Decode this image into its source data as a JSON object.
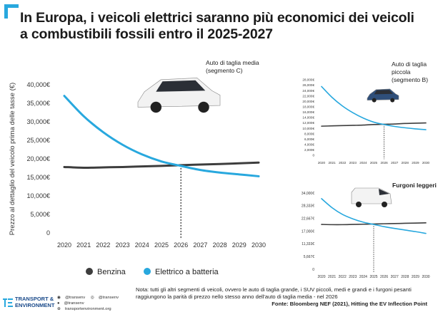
{
  "title_line1": "In Europa, i veicoli elettrici saranno più economici dei veicoli",
  "title_line2": "a combustibili fossili entro il 2025-2027",
  "colors": {
    "ice": "#3d3d3d",
    "ev": "#28a8de",
    "accent": "#28a8de",
    "brand": "#1a4a8a"
  },
  "chart_data": [
    {
      "type": "line",
      "title": "Auto di taglia media",
      "subtitle": "(segmento C)",
      "ylabel": "Prezzo al dettaglio del veicolo prima delle tasse (€)",
      "x": [
        2020,
        2021,
        2022,
        2023,
        2024,
        2025,
        2026,
        2027,
        2028,
        2029,
        2030
      ],
      "xlim": [
        2020,
        2030
      ],
      "ylim": [
        0,
        40000
      ],
      "yticks": [
        0,
        5000,
        10000,
        15000,
        20000,
        25000,
        30000,
        35000,
        40000
      ],
      "ytick_labels": [
        "0",
        "5,000€",
        "10,000€",
        "15,000€",
        "20,000€",
        "25,000€",
        "30,000€",
        "35,000€",
        "40,000€"
      ],
      "series": [
        {
          "name": "Benzina",
          "values": [
            17800,
            17600,
            17700,
            17800,
            17950,
            18100,
            18300,
            18450,
            18600,
            18800,
            19000
          ]
        },
        {
          "name": "Elettrico a batteria",
          "values": [
            37000,
            31500,
            27200,
            23800,
            21200,
            19300,
            18100,
            17000,
            16300,
            15800,
            15300
          ]
        }
      ],
      "parity_year": 2026,
      "legend": "bottom"
    },
    {
      "type": "line",
      "title": "Auto di taglia",
      "subtitle": "piccola",
      "subtitle2": "(segmento B)",
      "x": [
        2020,
        2021,
        2022,
        2023,
        2024,
        2025,
        2026,
        2027,
        2028,
        2029,
        2030
      ],
      "ylim": [
        0,
        28000
      ],
      "yticks": [
        0,
        2000,
        4000,
        6000,
        8000,
        10000,
        12000,
        14000,
        16000,
        18000,
        20000,
        22000,
        24000,
        26000,
        28000
      ],
      "ytick_labels": [
        "0",
        "2,000€",
        "4,000€",
        "6,000€",
        "8,000€",
        "10,000€",
        "12,000€",
        "14,000€",
        "16,000€",
        "18,000€",
        "20,000€",
        "22,000€",
        "24,000€",
        "26,000€",
        "28,000€"
      ],
      "series": [
        {
          "name": "Benzina",
          "values": [
            10800,
            10900,
            11000,
            11100,
            11200,
            11400,
            11500,
            11600,
            11800,
            11900,
            12000
          ]
        },
        {
          "name": "Elettrico a batteria",
          "values": [
            25500,
            21500,
            18300,
            15800,
            13800,
            12300,
            11400,
            10700,
            10200,
            9800,
            9500
          ]
        }
      ],
      "parity_year": 2026
    },
    {
      "type": "line",
      "title": "Furgoni leggeri",
      "x": [
        2020,
        2021,
        2022,
        2023,
        2024,
        2025,
        2026,
        2027,
        2028,
        2029,
        2030
      ],
      "ylim": [
        0,
        34000
      ],
      "yticks": [
        0,
        5667,
        11333,
        17000,
        22667,
        28333,
        34000
      ],
      "ytick_labels": [
        "0",
        "5,667€",
        "11,333€",
        "17,000€",
        "22,667€",
        "28,333€",
        "34,000€"
      ],
      "series": [
        {
          "name": "Benzina",
          "values": [
            20000,
            19900,
            19900,
            20000,
            20100,
            20200,
            20300,
            20400,
            20500,
            20600,
            20700
          ]
        },
        {
          "name": "Elettrico a batteria",
          "values": [
            31500,
            27500,
            24500,
            22500,
            21000,
            20000,
            19000,
            18200,
            17500,
            16800,
            16000
          ]
        }
      ],
      "parity_year": 2025
    }
  ],
  "legend": {
    "ice_label": "Benzina",
    "ev_label": "Elettrico a batteria"
  },
  "note": "Nota: tutti gli altri segmenti di veicoli, ovvero le auto di taglia grande, i SUV piccoli, medi e grandi e i furgoni pesanti raggiungono la parità di prezzo nello stesso anno dell'auto di taglia media - nel 2026",
  "source": "Fonte: Bloomberg NEF (2021), Hitting the EV Inflection Point",
  "brand": {
    "line1": "TRANSPORT &",
    "line2": "ENVIRONMENT",
    "logo": "TE"
  },
  "socials": {
    "twitter": "@transenv",
    "instagram": "@transenv",
    "facebook": "@transenv",
    "website": "transportenvironment.org"
  }
}
